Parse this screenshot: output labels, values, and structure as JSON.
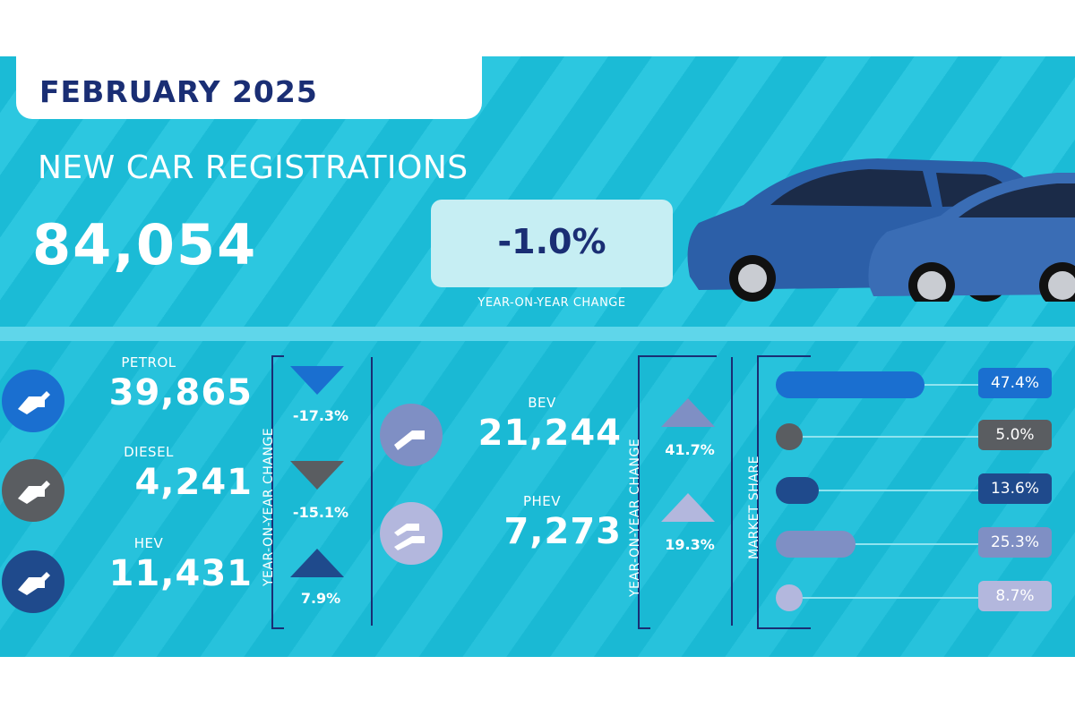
{
  "header": {
    "month": "FEBRUARY 2025",
    "title": "NEW CAR REGISTRATIONS",
    "total": "84,054",
    "yoy_change": "-1.0%",
    "yoy_label": "YEAR-ON-YEAR CHANGE"
  },
  "fuels_left": [
    {
      "name": "PETROL",
      "value": "39,865",
      "change": "-17.3%",
      "direction": "down",
      "color": "#1a6fd0"
    },
    {
      "name": "DIESEL",
      "value": "4,241",
      "change": "-15.1%",
      "direction": "down",
      "color": "#5a5d61"
    },
    {
      "name": "HEV",
      "value": "11,431",
      "change": "7.9%",
      "direction": "up",
      "color": "#1f4a8c"
    }
  ],
  "fuels_right": [
    {
      "name": "BEV",
      "value": "21,244",
      "change": "41.7%",
      "direction": "up",
      "color": "#7f8fc4"
    },
    {
      "name": "PHEV",
      "value": "7,273",
      "change": "19.3%",
      "direction": "up",
      "color": "#b3b7dd"
    }
  ],
  "labels": {
    "yoy_vertical": "YEAR-ON-YEAR CHANGE",
    "market_share": "MARKET SHARE"
  },
  "market_share": [
    {
      "fuel": "PETROL",
      "value": "47.4%",
      "share": 47.4,
      "color": "#1a6fd0"
    },
    {
      "fuel": "DIESEL",
      "value": "5.0%",
      "share": 5.0,
      "color": "#5a5d61"
    },
    {
      "fuel": "HEV",
      "value": "13.6%",
      "share": 13.6,
      "color": "#1f4a8c"
    },
    {
      "fuel": "BEV",
      "value": "25.3%",
      "share": 25.3,
      "color": "#7f8fc4"
    },
    {
      "fuel": "PHEV",
      "value": "8.7%",
      "share": 8.7,
      "color": "#b3b7dd"
    }
  ]
}
